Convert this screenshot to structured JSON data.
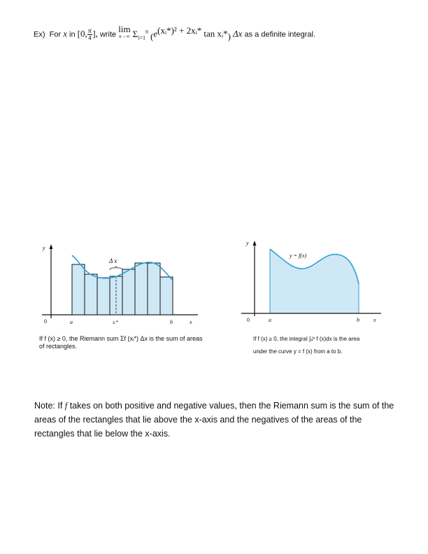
{
  "problem": {
    "label": "Ex)",
    "for_text": "For",
    "var_x": "x",
    "in_text": "in",
    "interval_open": "[0,",
    "frac_num": "π",
    "frac_den": "4",
    "interval_close": "],",
    "write_text": "write",
    "lim_text": "lim",
    "lim_sub": "n→∞",
    "sum_symbol": "Σ",
    "sum_sub": "i=1",
    "sum_sup": "n",
    "integrand": "e",
    "exponent": "(xᵢ*)² + 2xᵢ*",
    "tan_text": "tan xᵢ*",
    "dx_text": "Δx",
    "tail_text": "as a definite integral."
  },
  "figure_left": {
    "y_label": "y",
    "x_label": "x",
    "origin_label": "0",
    "a_label": "a",
    "b_label": "b",
    "xi_label": "xᵢ*",
    "delta_label": "Δ x",
    "caption": "If f (x) ≥ 0, the Riemann sum Σf (xᵢ*) Δx is the sum of areas of rectangles.",
    "colors": {
      "fill": "#cfe8f5",
      "curve": "#2a9fd6",
      "rect_stroke": "#111111"
    }
  },
  "figure_right": {
    "y_label": "y",
    "x_label": "x",
    "origin_label": "0",
    "a_label": "a",
    "b_label": "b",
    "curve_label": "y = f(x)",
    "caption_line1": "If f (x) ≥ 0, the integral ∫ₐᵇ f (x)dx is the area",
    "caption_line2": "under the curve y = f (x) from a to b.",
    "colors": {
      "fill": "#cfe8f5",
      "curve": "#2a9fd6"
    }
  },
  "note": {
    "prefix": "Note:  If",
    "f_symbol": "f",
    "body": "takes on both positive and negative values, then the Riemann sum is the sum of the areas of the rectangles that lie above the x-axis and the negatives of the areas of the rectangles that lie below the x-axis."
  }
}
